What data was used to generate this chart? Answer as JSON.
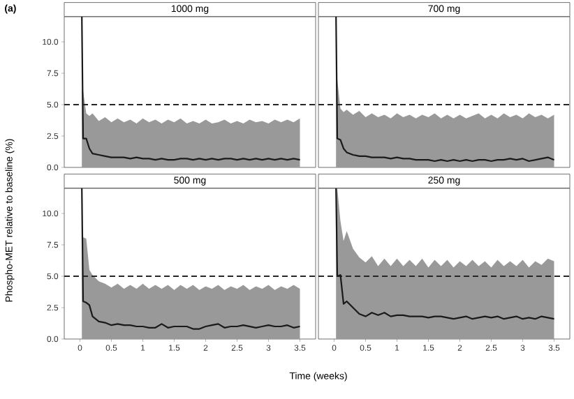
{
  "chart_data": [
    {
      "type": "line",
      "title": "1000 mg",
      "ylabel": "Phospho-MET relative to baseline (%)",
      "annotations": [
        "(a)"
      ],
      "tick_labels": "y",
      "x": [
        0.03,
        0.05,
        0.1,
        0.15,
        0.2,
        0.3,
        0.4,
        0.5,
        0.6,
        0.7,
        0.8,
        0.9,
        1.0,
        1.1,
        1.2,
        1.3,
        1.4,
        1.5,
        1.6,
        1.7,
        1.8,
        1.9,
        2.0,
        2.1,
        2.2,
        2.3,
        2.4,
        2.5,
        2.6,
        2.7,
        2.8,
        2.9,
        3.0,
        3.1,
        3.2,
        3.3,
        3.4,
        3.5
      ],
      "series": [
        {
          "color": "#1a1a1a",
          "values": [
            12,
            2.3,
            2.3,
            1.5,
            1.1,
            1.0,
            0.9,
            0.8,
            0.8,
            0.8,
            0.7,
            0.8,
            0.7,
            0.7,
            0.6,
            0.7,
            0.6,
            0.6,
            0.7,
            0.7,
            0.6,
            0.7,
            0.6,
            0.7,
            0.6,
            0.7,
            0.7,
            0.6,
            0.7,
            0.6,
            0.7,
            0.6,
            0.7,
            0.6,
            0.7,
            0.6,
            0.7,
            0.6
          ],
          "lower": [
            0,
            0,
            0,
            0,
            0,
            0,
            0,
            0,
            0,
            0,
            0,
            0,
            0,
            0,
            0,
            0,
            0,
            0,
            0,
            0,
            0,
            0,
            0,
            0,
            0,
            0,
            0,
            0,
            0,
            0,
            0,
            0,
            0,
            0,
            0,
            0,
            0,
            0
          ],
          "upper": [
            6.2,
            6.1,
            4.3,
            4.1,
            4.3,
            3.7,
            4.0,
            3.6,
            3.9,
            3.6,
            3.8,
            3.5,
            3.9,
            3.6,
            3.8,
            3.5,
            3.8,
            3.6,
            3.9,
            3.5,
            3.7,
            3.5,
            3.8,
            3.5,
            3.6,
            3.8,
            3.5,
            3.7,
            3.5,
            3.8,
            3.6,
            3.7,
            3.5,
            3.8,
            3.6,
            3.8,
            3.6,
            3.9
          ]
        }
      ],
      "xlim": [
        -0.25,
        3.75
      ],
      "ylim": [
        0,
        12
      ],
      "yticks": [
        {
          "value": 0,
          "label": "0.0"
        },
        {
          "value": 2.5,
          "label": "2.5"
        },
        {
          "value": 5,
          "label": "5.0"
        },
        {
          "value": 7.5,
          "label": "7.5"
        },
        {
          "value": 10,
          "label": "10.0"
        }
      ],
      "ref_lines": [
        {
          "axis": "y",
          "value": 5,
          "line_style": "dashed"
        }
      ]
    },
    {
      "type": "line",
      "title": "700 mg",
      "tick_labels": false,
      "x": [
        0.03,
        0.05,
        0.1,
        0.15,
        0.2,
        0.3,
        0.4,
        0.5,
        0.6,
        0.7,
        0.8,
        0.9,
        1.0,
        1.1,
        1.2,
        1.3,
        1.4,
        1.5,
        1.6,
        1.7,
        1.8,
        1.9,
        2.0,
        2.1,
        2.2,
        2.3,
        2.4,
        2.5,
        2.6,
        2.7,
        2.8,
        2.9,
        3.0,
        3.1,
        3.2,
        3.3,
        3.4,
        3.5
      ],
      "series": [
        {
          "color": "#1a1a1a",
          "values": [
            12,
            2.3,
            2.2,
            1.5,
            1.2,
            1.0,
            0.9,
            0.9,
            0.8,
            0.8,
            0.8,
            0.7,
            0.8,
            0.7,
            0.7,
            0.6,
            0.6,
            0.6,
            0.5,
            0.6,
            0.5,
            0.6,
            0.5,
            0.6,
            0.5,
            0.6,
            0.6,
            0.5,
            0.6,
            0.6,
            0.7,
            0.6,
            0.7,
            0.5,
            0.6,
            0.7,
            0.8,
            0.6
          ],
          "lower": [
            0,
            0,
            0,
            0,
            0,
            0,
            0,
            0,
            0,
            0,
            0,
            0,
            0,
            0,
            0,
            0,
            0,
            0,
            0,
            0,
            0,
            0,
            0,
            0,
            0,
            0,
            0,
            0,
            0,
            0,
            0,
            0,
            0,
            0,
            0,
            0,
            0,
            0
          ],
          "upper": [
            7.2,
            7.0,
            4.7,
            4.4,
            4.6,
            4.2,
            4.5,
            4.0,
            4.3,
            4.0,
            4.2,
            3.9,
            4.3,
            4.0,
            4.2,
            3.9,
            4.2,
            4.0,
            4.3,
            3.9,
            4.2,
            3.9,
            4.2,
            3.9,
            4.1,
            4.3,
            3.9,
            4.2,
            3.9,
            4.3,
            4.0,
            4.2,
            3.9,
            4.3,
            4.0,
            4.2,
            3.9,
            4.2
          ]
        }
      ],
      "xlim": [
        -0.25,
        3.75
      ],
      "ylim": [
        0,
        12
      ],
      "ref_lines": [
        {
          "axis": "y",
          "value": 5,
          "line_style": "dashed"
        }
      ]
    },
    {
      "type": "line",
      "title": "500 mg",
      "xlabel": "Time (weeks)",
      "x": [
        0.03,
        0.05,
        0.1,
        0.15,
        0.2,
        0.3,
        0.4,
        0.5,
        0.6,
        0.7,
        0.8,
        0.9,
        1.0,
        1.1,
        1.2,
        1.3,
        1.4,
        1.5,
        1.6,
        1.7,
        1.8,
        1.9,
        2.0,
        2.1,
        2.2,
        2.3,
        2.4,
        2.5,
        2.6,
        2.7,
        2.8,
        2.9,
        3.0,
        3.1,
        3.2,
        3.3,
        3.4,
        3.5
      ],
      "series": [
        {
          "color": "#1a1a1a",
          "values": [
            12,
            3.0,
            2.9,
            2.7,
            1.8,
            1.4,
            1.3,
            1.1,
            1.2,
            1.1,
            1.1,
            1.0,
            1.0,
            0.9,
            0.9,
            1.2,
            0.9,
            1.0,
            1.0,
            1.0,
            0.8,
            0.8,
            1.0,
            1.1,
            1.2,
            0.9,
            1.0,
            1.0,
            1.1,
            1.0,
            0.9,
            1.0,
            1.1,
            1.0,
            1.0,
            1.1,
            0.9,
            1.0
          ],
          "lower": [
            0,
            0,
            0,
            0,
            0,
            0,
            0,
            0,
            0,
            0,
            0,
            0,
            0,
            0,
            0,
            0,
            0,
            0,
            0,
            0,
            0,
            0,
            0,
            0,
            0,
            0,
            0,
            0,
            0,
            0,
            0,
            0,
            0,
            0,
            0,
            0,
            0,
            0
          ],
          "upper": [
            8.1,
            8.1,
            8.0,
            5.5,
            5.1,
            4.6,
            4.4,
            4.1,
            4.4,
            4.0,
            4.3,
            4.0,
            4.4,
            4.0,
            4.3,
            4.0,
            4.3,
            3.9,
            4.3,
            4.0,
            4.3,
            3.9,
            4.2,
            4.0,
            4.3,
            3.9,
            4.2,
            4.0,
            4.3,
            3.9,
            4.2,
            4.0,
            4.3,
            3.9,
            4.2,
            4.0,
            4.3,
            4.0
          ]
        }
      ],
      "xlim": [
        -0.25,
        3.75
      ],
      "ylim": [
        0,
        12
      ],
      "xticks": [
        0,
        0.5,
        1,
        1.5,
        2,
        2.5,
        3,
        3.5
      ],
      "yticks": [
        {
          "value": 0,
          "label": "0.0"
        },
        {
          "value": 2.5,
          "label": "2.5"
        },
        {
          "value": 5,
          "label": "5.0"
        },
        {
          "value": 7.5,
          "label": "7.5"
        },
        {
          "value": 10,
          "label": "10.0"
        }
      ],
      "ref_lines": [
        {
          "axis": "y",
          "value": 5,
          "line_style": "dashed"
        }
      ]
    },
    {
      "type": "line",
      "title": "250 mg",
      "tick_labels": "x",
      "x": [
        0.03,
        0.05,
        0.1,
        0.15,
        0.2,
        0.3,
        0.4,
        0.5,
        0.6,
        0.7,
        0.8,
        0.9,
        1.0,
        1.1,
        1.2,
        1.3,
        1.4,
        1.5,
        1.6,
        1.7,
        1.8,
        1.9,
        2.0,
        2.1,
        2.2,
        2.3,
        2.4,
        2.5,
        2.6,
        2.7,
        2.8,
        2.9,
        3.0,
        3.1,
        3.2,
        3.3,
        3.4,
        3.5
      ],
      "series": [
        {
          "color": "#1a1a1a",
          "values": [
            12,
            5.0,
            5.1,
            2.8,
            3.0,
            2.5,
            2.0,
            1.8,
            2.1,
            1.9,
            2.1,
            1.8,
            1.9,
            1.9,
            1.8,
            1.8,
            1.8,
            1.7,
            1.8,
            1.8,
            1.7,
            1.6,
            1.7,
            1.8,
            1.6,
            1.7,
            1.8,
            1.7,
            1.8,
            1.6,
            1.7,
            1.8,
            1.6,
            1.7,
            1.6,
            1.8,
            1.7,
            1.6
          ],
          "lower": [
            0,
            0,
            0,
            0,
            0,
            0,
            0,
            0,
            0,
            0,
            0,
            0,
            0,
            0,
            0,
            0,
            0,
            0,
            0,
            0,
            0,
            0,
            0,
            0,
            0,
            0,
            0,
            0,
            0,
            0,
            0,
            0,
            0,
            0,
            0,
            0,
            0,
            0
          ],
          "upper": [
            12,
            12,
            9.4,
            7.8,
            8.6,
            7.2,
            6.5,
            6.1,
            6.6,
            5.8,
            6.4,
            5.8,
            6.4,
            5.8,
            6.3,
            5.8,
            6.4,
            5.7,
            6.3,
            5.8,
            6.3,
            5.7,
            6.2,
            5.8,
            6.3,
            5.8,
            6.2,
            5.7,
            6.3,
            5.8,
            6.2,
            5.8,
            6.3,
            5.7,
            6.2,
            5.9,
            6.4,
            6.2
          ]
        }
      ],
      "xlim": [
        -0.25,
        3.75
      ],
      "ylim": [
        0,
        12
      ],
      "xticks": [
        0,
        0.5,
        1,
        1.5,
        2,
        2.5,
        3,
        3.5
      ],
      "ref_lines": [
        {
          "axis": "y",
          "value": 5,
          "line_style": "dashed"
        }
      ]
    }
  ]
}
